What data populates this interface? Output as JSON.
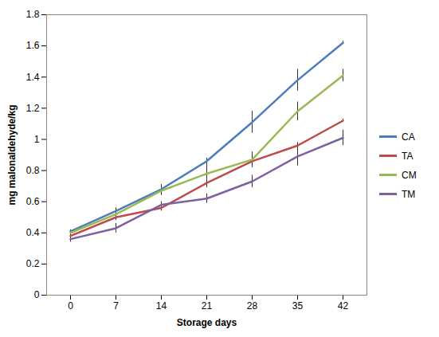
{
  "chart_data": {
    "type": "line",
    "x_label": "Storage days",
    "y_label": "mg malonaldehyde/kg",
    "categories": [
      "0",
      "7",
      "14",
      "21",
      "28",
      "35",
      "42"
    ],
    "ylim": [
      0,
      1.8
    ],
    "yticks": [
      0,
      0.2,
      0.4,
      0.6,
      0.8,
      1,
      1.2,
      1.4,
      1.6,
      1.8
    ],
    "grid": false,
    "legend": "right",
    "series": [
      {
        "name": "CA",
        "color": "#4a7ebb",
        "values": [
          0.41,
          0.54,
          0.68,
          0.86,
          1.11,
          1.38,
          1.62
        ],
        "errors": [
          0.01,
          0.02,
          0.03,
          0.02,
          0.07,
          0.07,
          0.01
        ]
      },
      {
        "name": "TA",
        "color": "#be4b48",
        "values": [
          0.38,
          0.5,
          0.56,
          0.72,
          0.86,
          0.96,
          1.12
        ],
        "errors": [
          0.01,
          0.02,
          0.02,
          0.03,
          0.04,
          0.02,
          0.01
        ]
      },
      {
        "name": "CM",
        "color": "#98b954",
        "values": [
          0.4,
          0.52,
          0.67,
          0.78,
          0.87,
          1.18,
          1.41
        ],
        "errors": [
          0.01,
          0.02,
          0.03,
          0.06,
          0.05,
          0.06,
          0.04
        ]
      },
      {
        "name": "TM",
        "color": "#7d60a0",
        "values": [
          0.36,
          0.43,
          0.58,
          0.62,
          0.73,
          0.89,
          1.01
        ],
        "errors": [
          0.02,
          0.03,
          0.02,
          0.03,
          0.04,
          0.06,
          0.05
        ]
      }
    ]
  }
}
